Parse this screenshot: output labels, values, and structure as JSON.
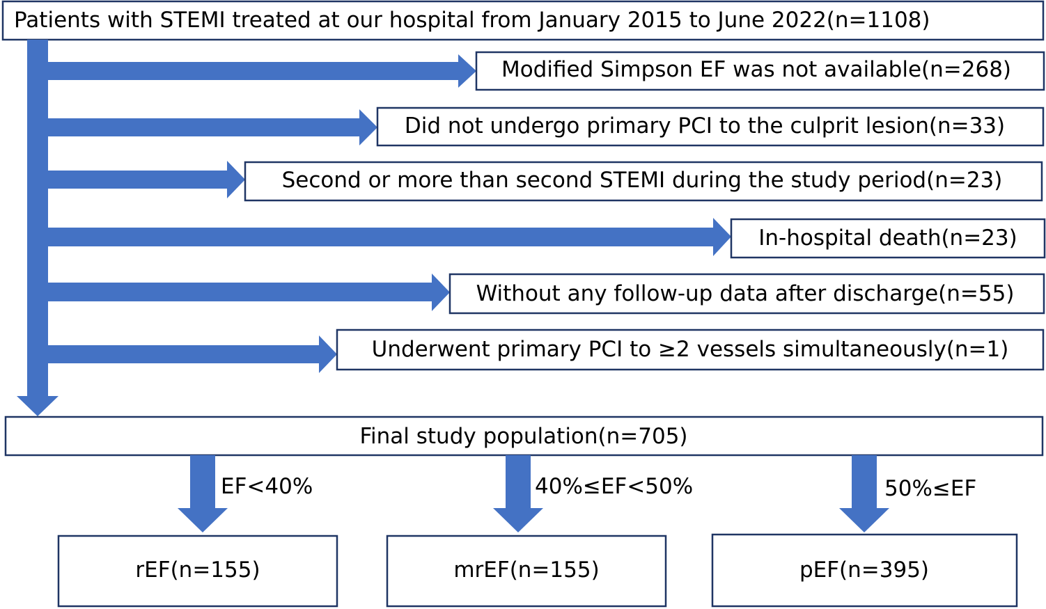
{
  "top_box": {
    "text": "Patients with STEMI treated at our hospital from January 2015 to June 2022(n=1108)"
  },
  "exclusions": [
    {
      "text": "Modified Simpson EF was not available(n=268)"
    },
    {
      "text": "Did not undergo primary PCI to the culprit lesion(n=33)"
    },
    {
      "text": "Second or more than second STEMI during the study period(n=23)"
    },
    {
      "text": "In-hospital death(n=23)"
    },
    {
      "text": "Without any follow-up data after discharge(n=55)"
    },
    {
      "text": "Underwent primary PCI to ≥2 vessels simultaneously(n=1)"
    }
  ],
  "final_box": {
    "text": "Final study population(n=705)"
  },
  "groups": [
    {
      "criterion": "EF<40%",
      "label": "rEF(n=155)"
    },
    {
      "criterion": "40%≤EF<50%",
      "label": "mrEF(n=155)"
    },
    {
      "criterion": "50%≤EF",
      "label": "pEF(n=395)"
    }
  ],
  "colors": {
    "arrow": "#4472c4",
    "box_border": "#1f3564"
  }
}
